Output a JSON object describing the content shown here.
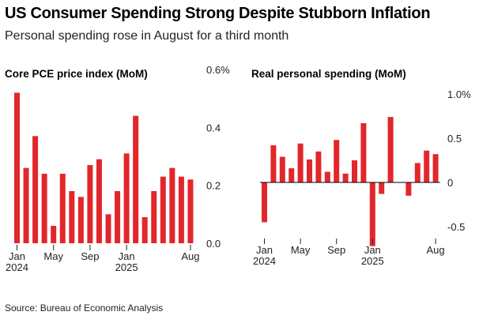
{
  "title": "US Consumer Spending Strong Despite Stubborn Inflation",
  "subtitle": "Personal spending rose in August for a third month",
  "source": "Source: Bureau of Economic Analysis",
  "colors": {
    "bar": "#e2272b",
    "zero_line": "#000000",
    "text": "#222222"
  },
  "chart_data": [
    {
      "type": "bar",
      "title": "Core PCE price index (MoM)",
      "categories": [
        "Jan 2024",
        "Feb 2024",
        "Mar 2024",
        "Apr 2024",
        "May 2024",
        "Jun 2024",
        "Jul 2024",
        "Aug 2024",
        "Sep 2024",
        "Oct 2024",
        "Nov 2024",
        "Dec 2024",
        "Jan 2025",
        "Feb 2025",
        "Mar 2025",
        "Apr 2025",
        "May 2025",
        "Jun 2025",
        "Jul 2025",
        "Aug 2025"
      ],
      "values": [
        0.52,
        0.26,
        0.37,
        0.24,
        0.06,
        0.24,
        0.18,
        0.16,
        0.27,
        0.29,
        0.1,
        0.18,
        0.31,
        0.44,
        0.09,
        0.18,
        0.23,
        0.26,
        0.23,
        0.22
      ],
      "ylim": [
        0,
        0.6
      ],
      "yticks": [
        0.0,
        0.2,
        0.4,
        0.6
      ],
      "ytick_labels": [
        "0.0",
        "0.2",
        "0.4",
        "0.6%"
      ],
      "xtick_labels": [
        {
          "index": 0,
          "line1": "Jan",
          "line2": "2024"
        },
        {
          "index": 4,
          "line1": "May",
          "line2": ""
        },
        {
          "index": 8,
          "line1": "Sep",
          "line2": ""
        },
        {
          "index": 12,
          "line1": "Jan",
          "line2": "2025"
        },
        {
          "index": 19,
          "line1": "Aug",
          "line2": ""
        }
      ],
      "grid": false
    },
    {
      "type": "bar",
      "title": "Real personal spending (MoM)",
      "categories": [
        "Jan 2024",
        "Feb 2024",
        "Mar 2024",
        "Apr 2024",
        "May 2024",
        "Jun 2024",
        "Jul 2024",
        "Aug 2024",
        "Sep 2024",
        "Oct 2024",
        "Nov 2024",
        "Dec 2024",
        "Jan 2025",
        "Feb 2025",
        "Mar 2025",
        "Apr 2025",
        "May 2025",
        "Jun 2025",
        "Jul 2025",
        "Aug 2025"
      ],
      "values": [
        -0.45,
        0.42,
        0.29,
        0.16,
        0.44,
        0.26,
        0.35,
        0.12,
        0.48,
        0.1,
        0.25,
        0.67,
        -0.72,
        -0.13,
        0.74,
        0.0,
        -0.15,
        0.22,
        0.36,
        0.32
      ],
      "ylim": [
        -0.75,
        1.0
      ],
      "yticks": [
        -0.5,
        0,
        0.5,
        1.0
      ],
      "ytick_labels": [
        "-0.5",
        "0",
        "0.5",
        "1.0%"
      ],
      "xtick_labels": [
        {
          "index": 0,
          "line1": "Jan",
          "line2": "2024"
        },
        {
          "index": 4,
          "line1": "May",
          "line2": ""
        },
        {
          "index": 8,
          "line1": "Sep",
          "line2": ""
        },
        {
          "index": 12,
          "line1": "Jan",
          "line2": "2025"
        },
        {
          "index": 19,
          "line1": "Aug",
          "line2": ""
        }
      ],
      "grid": false
    }
  ]
}
